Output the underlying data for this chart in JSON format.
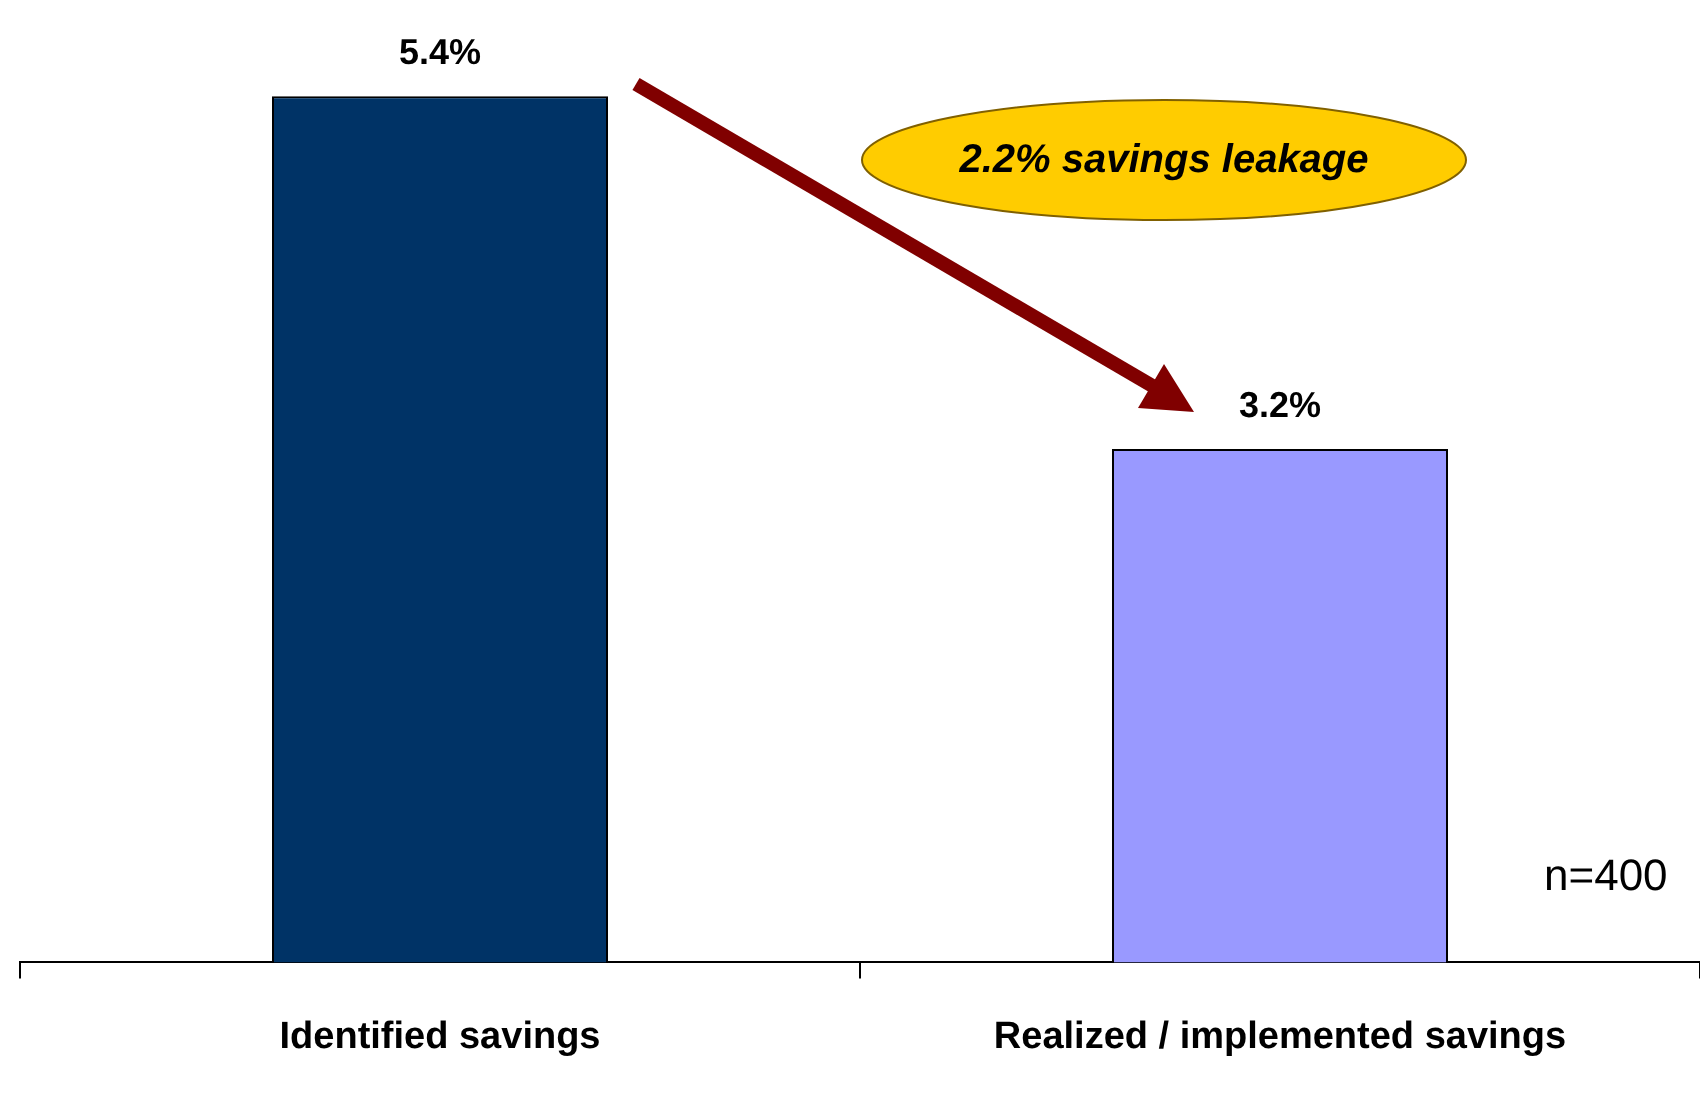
{
  "chart_data": {
    "type": "bar",
    "categories": [
      "Identified savings",
      "Realized / implemented savings"
    ],
    "values": [
      5.4,
      3.2
    ],
    "colors": [
      "#003366",
      "#9999ff"
    ],
    "data_labels": true,
    "value_labels": [
      "5.4%",
      "3.2%"
    ],
    "annotations": [
      "2.2% savings leakage",
      "n=400"
    ]
  }
}
